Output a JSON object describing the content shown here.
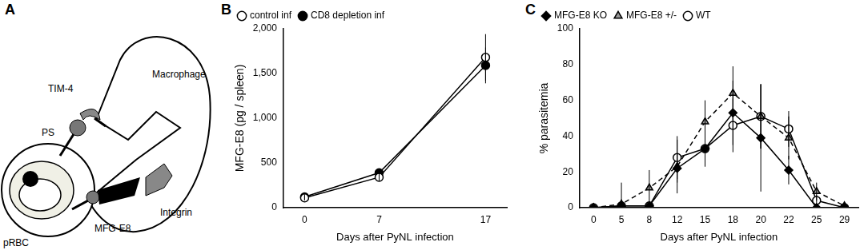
{
  "diagram": {
    "panel": "A",
    "texts": {
      "tim4": "TIM-4",
      "macrophage": "Macrophage",
      "ps": "PS",
      "mfge8": "MFG-E8",
      "integrin": "Integrin",
      "prbc": "pRBC"
    }
  },
  "chart_data": [
    {
      "panel": "B",
      "type": "line",
      "x_label": "Days after PyNL infection",
      "y_label": "MFG-E8 (pg / spleen)",
      "x": [
        0,
        7,
        17
      ],
      "xlim": [
        -2,
        19
      ],
      "xticks": [
        0,
        7,
        17
      ],
      "ylim": [
        0,
        2000
      ],
      "yticks": [
        0,
        500,
        1000,
        1500,
        2000
      ],
      "grid": false,
      "legend": "upper-left",
      "series": [
        {
          "name": "control inf",
          "color": "#ffffff",
          "marker": "circle",
          "line_style": "solid",
          "values": [
            110,
            340,
            1680
          ],
          "errors": [
            30,
            40,
            260
          ]
        },
        {
          "name": "CD8 depletion inf",
          "color": "#000000",
          "marker": "circle",
          "line_style": "solid",
          "values": [
            120,
            390,
            1590
          ],
          "errors": [
            30,
            40,
            200
          ]
        }
      ]
    },
    {
      "panel": "C",
      "type": "line",
      "x_label": "Days after PyNL infection",
      "y_label": "% parasitemia",
      "categories": [
        "0",
        "5",
        "8",
        "12",
        "15",
        "18",
        "20",
        "22",
        "25",
        "29"
      ],
      "ylim": [
        0,
        100
      ],
      "yticks": [
        0,
        20,
        40,
        60,
        80,
        100
      ],
      "grid": false,
      "legend": "upper-left",
      "series": [
        {
          "name": "MFG-E8 KO",
          "color": "#000000",
          "marker": "diamond",
          "line_style": "solid",
          "values": [
            0,
            1,
            1,
            22,
            33,
            53,
            39,
            21,
            0,
            0
          ],
          "errors": [
            0,
            1,
            2,
            8,
            10,
            18,
            30,
            8,
            1,
            1
          ]
        },
        {
          "name": "MFG-E8 +/-",
          "color": "#999999",
          "marker": "triangle",
          "line_style": "dashed",
          "values": [
            0,
            2,
            11,
            23,
            48,
            64,
            51,
            39,
            9,
            1
          ],
          "errors": [
            0,
            12,
            10,
            15,
            12,
            15,
            18,
            12,
            5,
            2
          ]
        },
        {
          "name": "WT",
          "color": "#ffffff",
          "marker": "circle",
          "line_style": "solid",
          "values": [
            0,
            1,
            1,
            28,
            33,
            46,
            51,
            44,
            4,
            0
          ],
          "errors": [
            0,
            1,
            1,
            12,
            10,
            15,
            18,
            10,
            3,
            1
          ]
        }
      ]
    }
  ]
}
